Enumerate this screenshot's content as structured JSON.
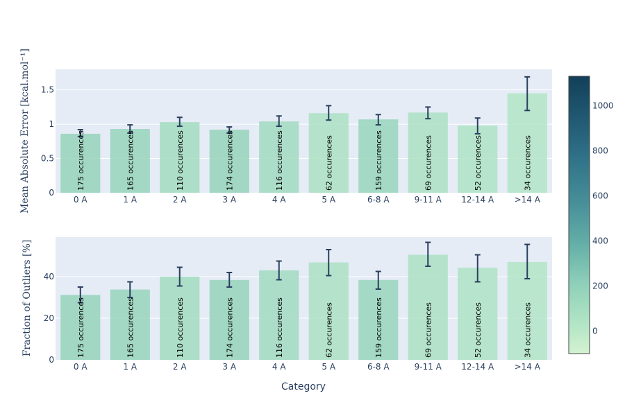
{
  "chart_data": [
    {
      "type": "bar",
      "ylabel": "Mean Absolute Error [kcal.mol⁻¹]",
      "xlabel": "",
      "categories": [
        "0 A",
        "1 A",
        "2 A",
        "3 A",
        "4 A",
        "5 A",
        "6-8 A",
        "9-11 A",
        "12-14 A",
        ">14 A"
      ],
      "values": [
        0.86,
        0.93,
        1.03,
        0.92,
        1.04,
        1.16,
        1.07,
        1.17,
        0.98,
        1.45
      ],
      "error_low": [
        0.82,
        0.87,
        0.97,
        0.87,
        0.97,
        1.06,
        0.99,
        1.08,
        0.86,
        1.2
      ],
      "error_high": [
        0.92,
        0.99,
        1.1,
        0.96,
        1.12,
        1.27,
        1.14,
        1.25,
        1.09,
        1.69
      ],
      "occurrences": [
        175,
        165,
        110,
        174,
        116,
        62,
        159,
        69,
        52,
        34
      ],
      "bar_labels": [
        "175 occurences",
        "165 occurences",
        "110 occurences",
        "174 occurences",
        "116 occurences",
        "62 occurences",
        "159 occurences",
        "69 occurences",
        "52 occurences",
        "34 occurences"
      ],
      "yticks": [
        "0",
        "0.5",
        "1",
        "1.5"
      ],
      "ytick_values": [
        0,
        0.5,
        1,
        1.5
      ],
      "ylim": [
        0,
        1.8
      ]
    },
    {
      "type": "bar",
      "ylabel": "Fraction of Outliers [%]",
      "xlabel": "Category",
      "categories": [
        "0 A",
        "1 A",
        "2 A",
        "3 A",
        "4 A",
        "5 A",
        "6-8 A",
        "9-11 A",
        "12-14 A",
        ">14 A"
      ],
      "values": [
        31.2,
        33.8,
        40.0,
        38.4,
        43.0,
        46.8,
        38.4,
        50.5,
        44.3,
        47.0
      ],
      "error_low": [
        27.5,
        30.0,
        35.5,
        35.0,
        38.5,
        40.5,
        34.0,
        45.0,
        37.5,
        39.0
      ],
      "error_high": [
        35.0,
        37.5,
        44.5,
        42.0,
        47.5,
        53.0,
        42.5,
        56.5,
        50.5,
        55.5
      ],
      "occurrences": [
        175,
        165,
        110,
        174,
        116,
        62,
        159,
        69,
        52,
        34
      ],
      "bar_labels": [
        "175 occurences",
        "165 occurences",
        "110 occurences",
        "174 occurences",
        "116 occurences",
        "62 occurences",
        "159 occurences",
        "69 occurences",
        "52 occurences",
        "34 occurences"
      ],
      "yticks": [
        "0",
        "20",
        "40"
      ],
      "ytick_values": [
        0,
        20,
        40
      ],
      "ylim": [
        0,
        59
      ]
    }
  ],
  "colorbar": {
    "ticks": [
      "0",
      "200",
      "400",
      "600",
      "800",
      "1000"
    ],
    "tick_values": [
      0,
      200,
      400,
      600,
      800,
      1000
    ],
    "range": [
      -100,
      1130
    ],
    "color_low": "#d3f2d1",
    "color_high": "#123f5a"
  },
  "colors": {
    "plot_bg": "#e5ecf6",
    "grid": "#ffffff",
    "error_bar": "#2a3f5f",
    "axis_text": "#2a3f5f"
  }
}
